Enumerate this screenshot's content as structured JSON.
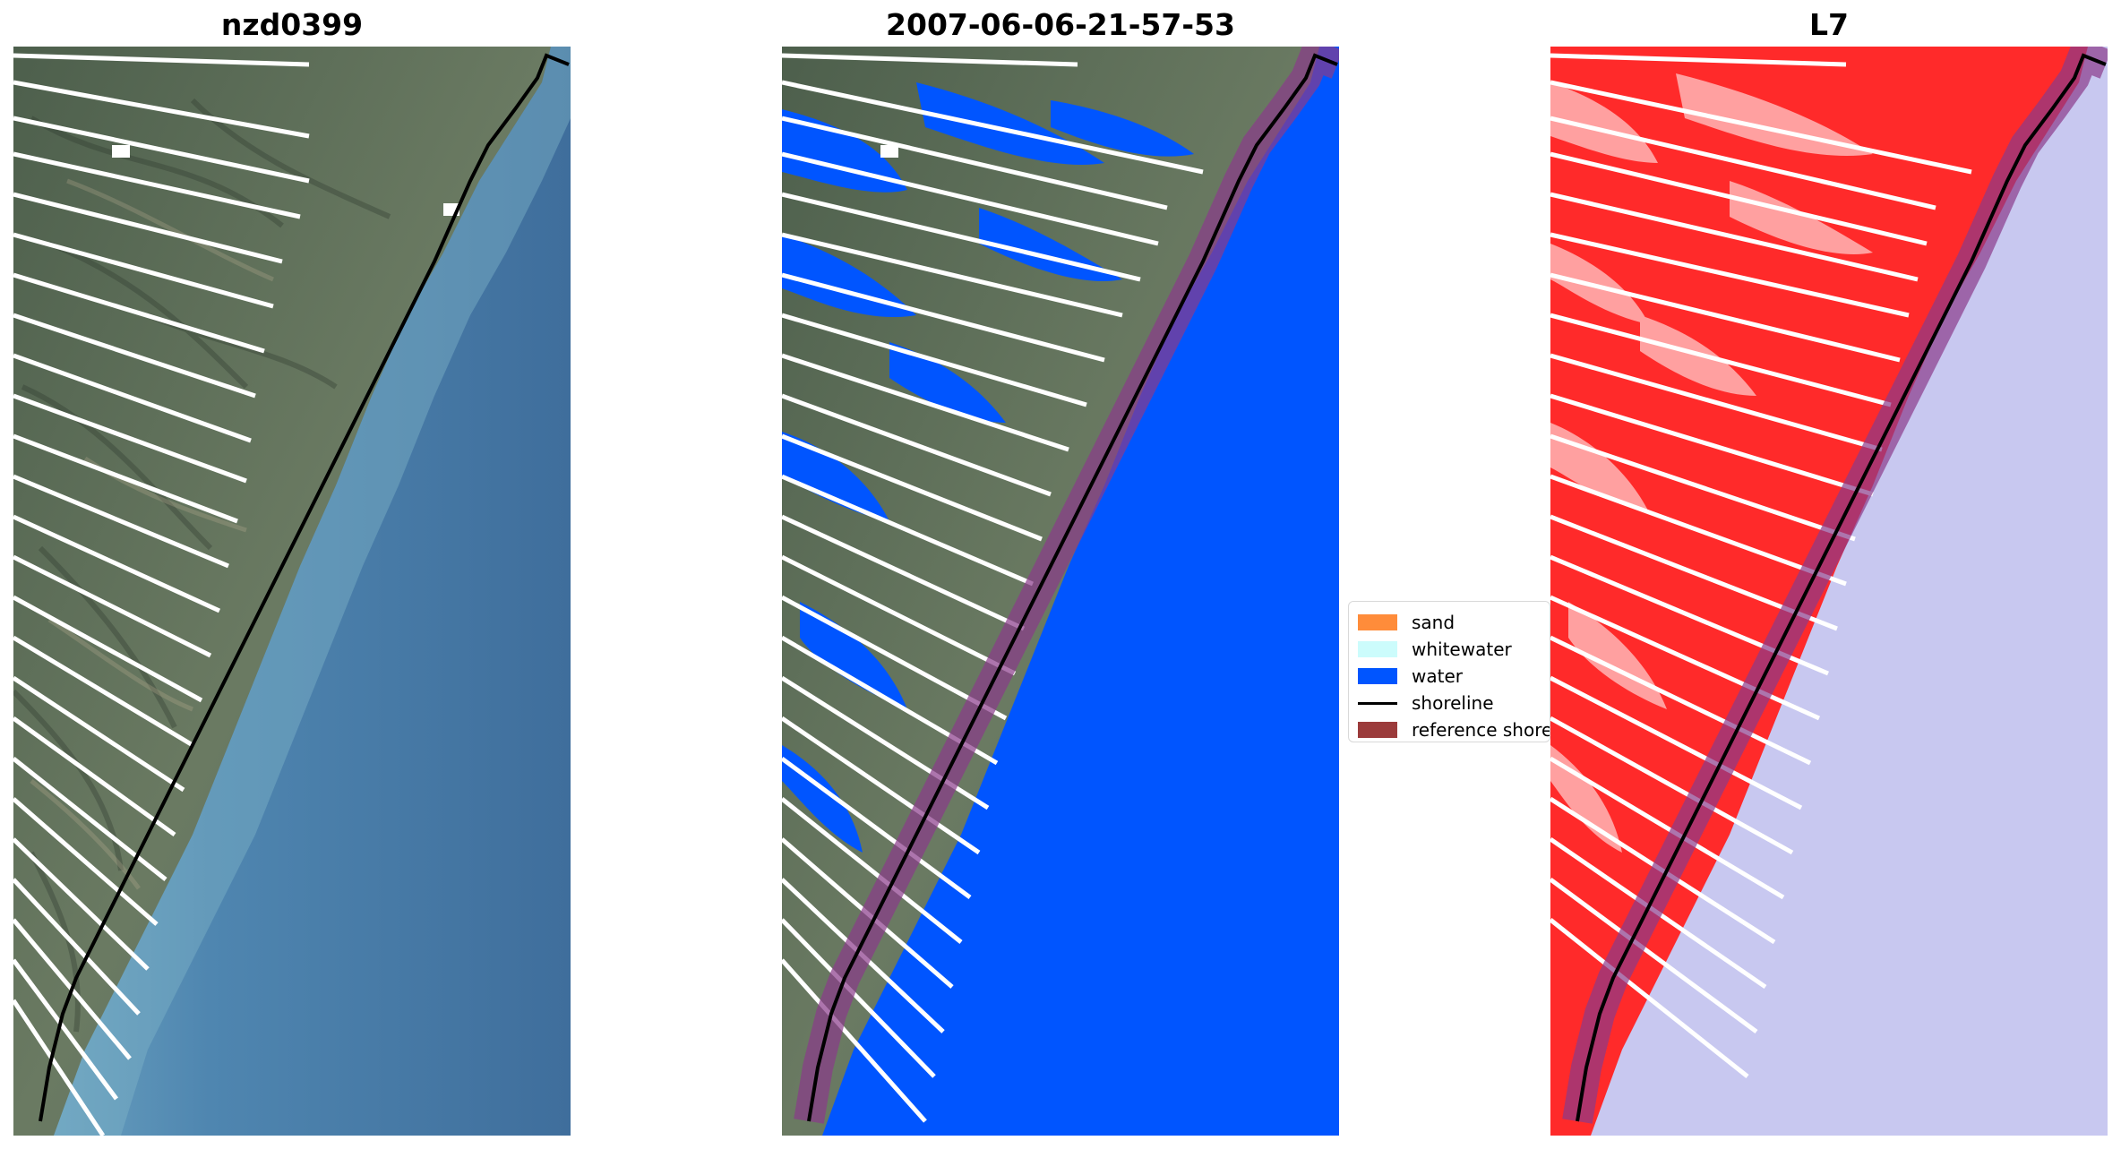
{
  "panels": [
    {
      "title": "nzd0399"
    },
    {
      "title": "2007-06-06-21-57-53"
    },
    {
      "title": "L7"
    }
  ],
  "legend": {
    "items": [
      {
        "label": "sand",
        "kind": "patch",
        "color": "#ff8c3a"
      },
      {
        "label": "whitewater",
        "kind": "patch",
        "color": "#ccfcfc"
      },
      {
        "label": "water",
        "kind": "patch",
        "color": "#0055ff"
      },
      {
        "label": "shoreline",
        "kind": "line",
        "color": "#000000"
      },
      {
        "label": "reference shoreline buffer",
        "kind": "patch",
        "color": "#9b3b3b"
      }
    ]
  },
  "colors": {
    "water_natural": "#4a78a2",
    "water_class": "#0055ff",
    "land_natural": "#5b6e5a",
    "l7_land": "#ff2a2a",
    "l7_water": "#c8c8f0",
    "buffer": "#7a3a8a",
    "shoreline": "#000000"
  }
}
